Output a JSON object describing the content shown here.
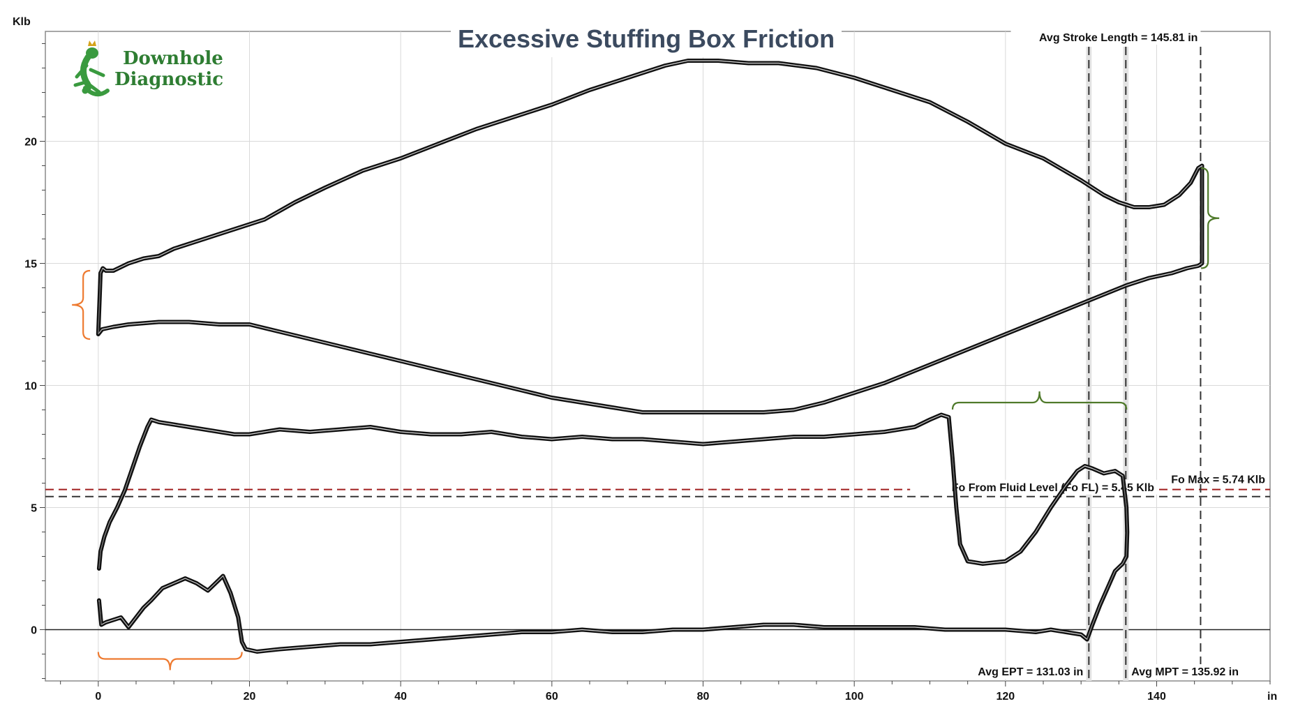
{
  "chart_data": {
    "type": "line",
    "title": "Excessive Stuffing Box Friction",
    "logo": "Downhole Diagnostic",
    "xlabel": "in",
    "ylabel": "Klb",
    "xlim": [
      -7,
      155
    ],
    "ylim": [
      -2.1,
      24.5
    ],
    "xticks": [
      0,
      20,
      40,
      60,
      80,
      100,
      120,
      140
    ],
    "xtick_labels": [
      "0",
      "20",
      "40",
      "60",
      "80",
      "100",
      "120",
      "140"
    ],
    "yticks": [
      0,
      5,
      10,
      15,
      20
    ],
    "ytick_labels": [
      "0",
      "5",
      "10",
      "15",
      "20"
    ],
    "grid": true,
    "colors": {
      "curve": "#111111",
      "fo_max": "#a01d1d",
      "fo_fl": "#333333",
      "orange_bracket": "#ee7a30",
      "green_bracket": "#4f7a2a",
      "title_text": "#3b4a5f",
      "logo": "#2e7d32"
    },
    "series": [
      {
        "role": "surface-card",
        "x": [
          0,
          0.3,
          0.6,
          1,
          2,
          4,
          6,
          8,
          10,
          14,
          18,
          22,
          26,
          30,
          35,
          40,
          45,
          50,
          55,
          60,
          65,
          70,
          75,
          78,
          82,
          86,
          90,
          95,
          100,
          105,
          110,
          115,
          120,
          125,
          130,
          133,
          135,
          137,
          139,
          141,
          143,
          144.5,
          145.5,
          146,
          146,
          145.5,
          144,
          142,
          139,
          136,
          132,
          128,
          124,
          120,
          116,
          112,
          108,
          104,
          100,
          96,
          92,
          88,
          84,
          80,
          76,
          72,
          68,
          64,
          60,
          56,
          52,
          48,
          44,
          40,
          36,
          32,
          28,
          24,
          20,
          16,
          12,
          8,
          4,
          2,
          0.5,
          0
        ],
        "y": [
          12.1,
          14.6,
          14.8,
          14.7,
          14.7,
          15.0,
          15.2,
          15.3,
          15.6,
          16.0,
          16.4,
          16.8,
          17.5,
          18.1,
          18.8,
          19.3,
          19.9,
          20.5,
          21.0,
          21.5,
          22.1,
          22.6,
          23.1,
          23.3,
          23.3,
          23.2,
          23.2,
          23.0,
          22.6,
          22.1,
          21.6,
          20.8,
          19.9,
          19.3,
          18.4,
          17.8,
          17.5,
          17.3,
          17.3,
          17.4,
          17.8,
          18.3,
          18.9,
          19.0,
          15.0,
          14.9,
          14.8,
          14.6,
          14.4,
          14.1,
          13.6,
          13.1,
          12.6,
          12.1,
          11.6,
          11.1,
          10.6,
          10.1,
          9.7,
          9.3,
          9.0,
          8.9,
          8.9,
          8.9,
          8.9,
          8.9,
          9.1,
          9.3,
          9.5,
          9.8,
          10.1,
          10.4,
          10.7,
          11.0,
          11.3,
          11.6,
          11.9,
          12.2,
          12.5,
          12.5,
          12.6,
          12.6,
          12.5,
          12.4,
          12.3,
          12.1
        ]
      },
      {
        "role": "downhole-card",
        "x": [
          0.1,
          0.3,
          0.8,
          1.5,
          2.5,
          3.5,
          4.5,
          5.5,
          6.5,
          7.0,
          8.0,
          10,
          12,
          14,
          16,
          18,
          20,
          24,
          28,
          32,
          36,
          40,
          44,
          48,
          52,
          56,
          60,
          64,
          68,
          72,
          76,
          80,
          84,
          88,
          92,
          96,
          100,
          104,
          108,
          110,
          111.5,
          112.5,
          113.0,
          113.5,
          114,
          115,
          117,
          120,
          122,
          124,
          126,
          128,
          129.5,
          130.5,
          131.5,
          133,
          134.5,
          135.5,
          136,
          136.1,
          136.0,
          135.5,
          134.5,
          133.5,
          132.5,
          131.5,
          130.8,
          130,
          128,
          126,
          124,
          120,
          116,
          112,
          108,
          104,
          100,
          96,
          92,
          88,
          84,
          80,
          76,
          72,
          68,
          64,
          60,
          56,
          52,
          48,
          44,
          40,
          36,
          32,
          28,
          24,
          21,
          19.5,
          19,
          18.5,
          17.5,
          16.5,
          15.5,
          14.5,
          13,
          11.5,
          10,
          8.5,
          7,
          6,
          5,
          4,
          3,
          2,
          1,
          0.4,
          0.1
        ],
        "y": [
          2.5,
          3.2,
          3.8,
          4.4,
          5.0,
          5.7,
          6.6,
          7.5,
          8.3,
          8.6,
          8.5,
          8.4,
          8.3,
          8.2,
          8.1,
          8.0,
          8.0,
          8.2,
          8.1,
          8.2,
          8.3,
          8.1,
          8.0,
          8.0,
          8.1,
          7.9,
          7.8,
          7.9,
          7.8,
          7.8,
          7.7,
          7.6,
          7.7,
          7.8,
          7.9,
          7.9,
          8.0,
          8.1,
          8.3,
          8.6,
          8.8,
          8.7,
          7.0,
          5.0,
          3.5,
          2.8,
          2.7,
          2.8,
          3.2,
          4.0,
          5.0,
          5.9,
          6.5,
          6.7,
          6.6,
          6.4,
          6.5,
          6.3,
          5.0,
          4.0,
          3.0,
          2.7,
          2.4,
          1.7,
          1.0,
          0.2,
          -0.4,
          -0.2,
          -0.1,
          0.0,
          -0.1,
          0.0,
          0.0,
          0.0,
          0.1,
          0.1,
          0.1,
          0.1,
          0.2,
          0.2,
          0.1,
          0.0,
          0.0,
          -0.1,
          -0.1,
          0.0,
          -0.1,
          -0.1,
          -0.2,
          -0.3,
          -0.4,
          -0.5,
          -0.6,
          -0.6,
          -0.7,
          -0.8,
          -0.9,
          -0.8,
          -0.5,
          0.5,
          1.5,
          2.2,
          1.9,
          1.6,
          1.9,
          2.1,
          1.9,
          1.7,
          1.2,
          0.9,
          0.5,
          0.1,
          0.5,
          0.4,
          0.3,
          0.2,
          1.2
        ]
      }
    ],
    "reference_lines": {
      "fo_max": {
        "y": 5.74,
        "label": "Fo Max = 5.74 Klb"
      },
      "fo_fl": {
        "y": 5.45,
        "label": "Fo From Fluid Level (Fo FL) = 5.45 Klb"
      },
      "avg_ept": {
        "x": 131.03,
        "label": "Avg EPT = 131.03 in"
      },
      "avg_mpt": {
        "x": 135.92,
        "label": "Avg MPT = 135.92 in"
      },
      "avg_stroke": {
        "x": 145.81,
        "label": "Avg Stroke Length = 145.81 in"
      }
    },
    "brackets": [
      {
        "id": "orange-left",
        "color": "orange_bracket",
        "orientation": "left",
        "x": -2,
        "y_range": [
          11.9,
          14.7
        ]
      },
      {
        "id": "orange-bottom",
        "color": "orange_bracket",
        "orientation": "down",
        "y": -1.2,
        "x_range": [
          0,
          19
        ]
      },
      {
        "id": "green-top",
        "color": "green_bracket",
        "orientation": "up",
        "y": 9.3,
        "x_range": [
          113,
          136
        ]
      },
      {
        "id": "green-right",
        "color": "green_bracket",
        "orientation": "right",
        "x": 146.8,
        "y_range": [
          14.8,
          18.9
        ]
      }
    ]
  }
}
